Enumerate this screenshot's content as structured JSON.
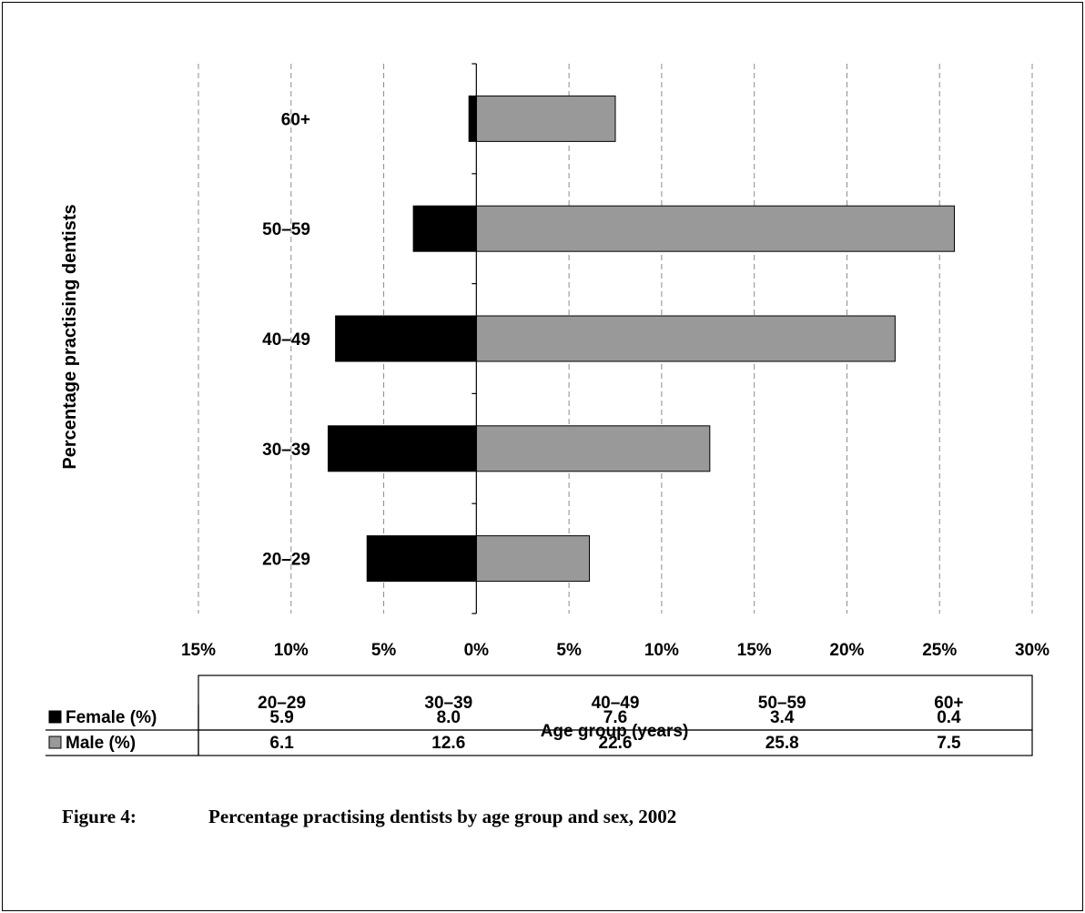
{
  "chart_data": {
    "type": "bar",
    "orientation": "horizontal-diverging",
    "categories": [
      "20–29",
      "30–39",
      "40–49",
      "50–59",
      "60+"
    ],
    "series": [
      {
        "name": "Female (%)",
        "values": [
          5.9,
          8.0,
          7.6,
          3.4,
          0.4
        ],
        "color": "#000000",
        "direction": "left"
      },
      {
        "name": "Male (%)",
        "values": [
          6.1,
          12.6,
          22.6,
          25.8,
          7.5
        ],
        "color": "#999999",
        "direction": "right"
      }
    ],
    "xlim": [
      -15,
      30
    ],
    "x_ticks": [
      -15,
      -10,
      -5,
      0,
      5,
      10,
      15,
      20,
      25,
      30
    ],
    "x_tick_labels": [
      "15%",
      "10%",
      "5%",
      "0%",
      "5%",
      "10%",
      "15%",
      "20%",
      "25%",
      "30%"
    ],
    "ylabel": "Percentage practising dentists",
    "xlabel": "Age group (years)",
    "grid": "vertical dashed",
    "legend": "data table below axis",
    "table": {
      "header": [
        "20–29",
        "30–39",
        "40–49",
        "50–59",
        "60+"
      ],
      "rows": [
        {
          "label": "Female (%)",
          "values": [
            "5.9",
            "8.0",
            "7.6",
            "3.4",
            "0.4"
          ]
        },
        {
          "label": "Male (%)",
          "values": [
            "6.1",
            "12.6",
            "22.6",
            "25.8",
            "7.5"
          ]
        }
      ]
    }
  },
  "caption": {
    "number": "Figure 4:",
    "text": "Percentage practising dentists by age group and sex, 2002"
  }
}
